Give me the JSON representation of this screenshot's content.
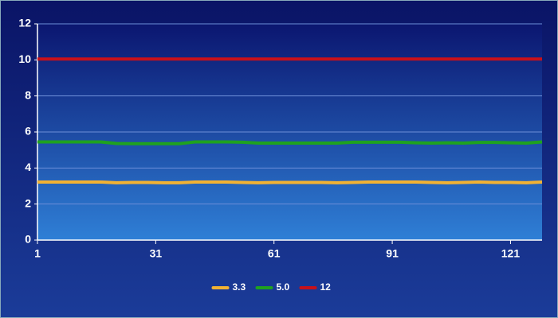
{
  "chart_data": {
    "type": "line",
    "x": [
      1,
      5,
      9,
      13,
      17,
      21,
      25,
      29,
      33,
      37,
      41,
      45,
      49,
      53,
      57,
      61,
      65,
      69,
      73,
      77,
      81,
      85,
      89,
      93,
      97,
      101,
      105,
      109,
      113,
      117,
      121,
      125,
      129
    ],
    "series": [
      {
        "name": "3.3",
        "color": "#f2b233",
        "values": [
          3.22,
          3.22,
          3.22,
          3.22,
          3.22,
          3.18,
          3.2,
          3.2,
          3.18,
          3.18,
          3.22,
          3.22,
          3.22,
          3.2,
          3.18,
          3.2,
          3.2,
          3.2,
          3.2,
          3.18,
          3.2,
          3.22,
          3.22,
          3.22,
          3.22,
          3.2,
          3.18,
          3.2,
          3.22,
          3.2,
          3.2,
          3.18,
          3.22
        ]
      },
      {
        "name": "5.0",
        "color": "#1fa21f",
        "values": [
          5.45,
          5.45,
          5.45,
          5.45,
          5.45,
          5.36,
          5.35,
          5.35,
          5.35,
          5.35,
          5.45,
          5.45,
          5.45,
          5.43,
          5.38,
          5.38,
          5.38,
          5.38,
          5.38,
          5.38,
          5.43,
          5.43,
          5.43,
          5.43,
          5.4,
          5.38,
          5.4,
          5.38,
          5.42,
          5.42,
          5.4,
          5.38,
          5.45
        ]
      },
      {
        "name": "12",
        "color": "#c8111a",
        "values": [
          10.05,
          10.05,
          10.05,
          10.05,
          10.05,
          10.05,
          10.05,
          10.05,
          10.05,
          10.05,
          10.05,
          10.05,
          10.05,
          10.05,
          10.05,
          10.05,
          10.05,
          10.05,
          10.05,
          10.05,
          10.05,
          10.05,
          10.05,
          10.05,
          10.05,
          10.05,
          10.05,
          10.05,
          10.05,
          10.05,
          10.05,
          10.05,
          10.05
        ]
      }
    ],
    "xlim": [
      1,
      129
    ],
    "xticks": [
      1,
      31,
      61,
      91,
      121
    ],
    "ylim": [
      0,
      12
    ],
    "yticks": [
      0,
      2,
      4,
      6,
      8,
      10,
      12
    ],
    "grid": true,
    "legend": "bottom"
  }
}
